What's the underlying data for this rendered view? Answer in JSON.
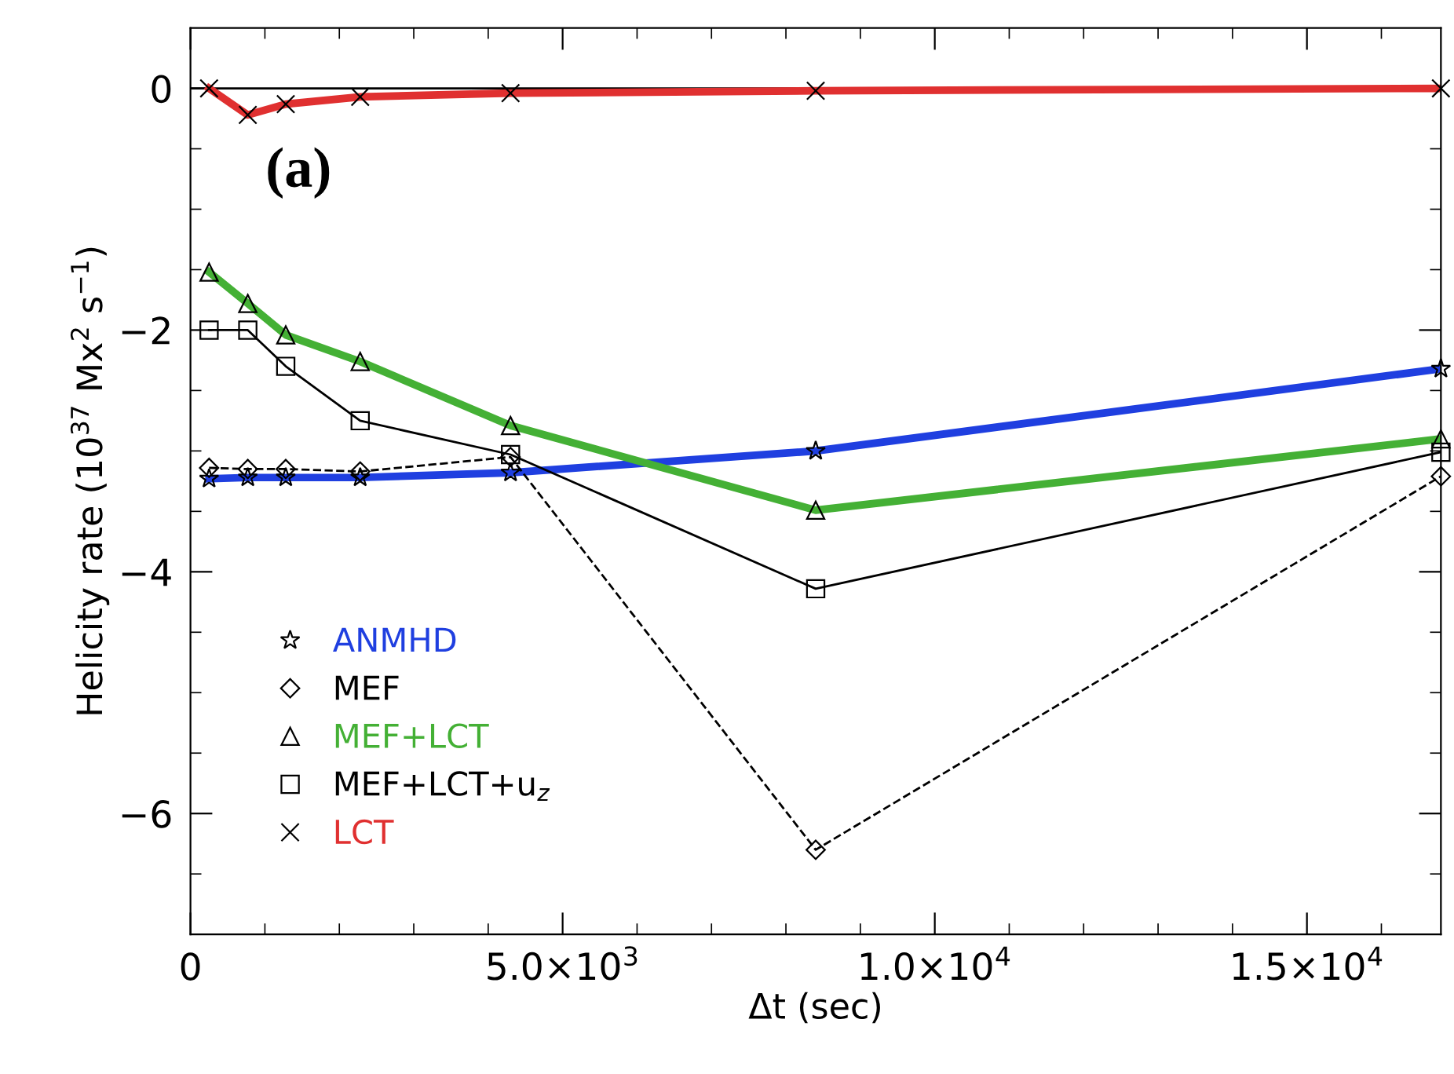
{
  "chart_data": {
    "type": "line",
    "xlabel": "Δt (sec)",
    "ylabel": "Helicity rate (10$^{37}$ Mx$^{2}$ s$^{−1}$)",
    "x": [
      250,
      770,
      1280,
      2280,
      4300,
      8400,
      16800
    ],
    "series": [
      {
        "name": "ANMHD",
        "color": "#1f3fe0",
        "marker": "star",
        "line_style": "solid",
        "values": [
          -3.23,
          -3.22,
          -3.22,
          -3.22,
          -3.18,
          -3.0,
          -2.32
        ]
      },
      {
        "name": "MEF",
        "color": "#000000",
        "marker": "diamond",
        "line_style": "dashed",
        "values": [
          -3.14,
          -3.15,
          -3.15,
          -3.17,
          -3.05,
          -6.3,
          -3.21
        ]
      },
      {
        "name": "MEF+LCT",
        "color": "#44b035",
        "marker": "triangle",
        "line_style": "solid",
        "values": [
          -1.52,
          -1.78,
          -2.04,
          -2.26,
          -2.79,
          -3.49,
          -2.9
        ]
      },
      {
        "name": "MEF+LCT+u$_{z}$",
        "color": "#000000",
        "marker": "square",
        "line_style": "solid",
        "values": [
          -2.0,
          -2.0,
          -2.3,
          -2.75,
          -3.03,
          -4.14,
          -3.01
        ]
      },
      {
        "name": "LCT",
        "color": "#e03030",
        "marker": "cross",
        "line_style": "solid",
        "values": [
          0,
          -0.22,
          -0.13,
          -0.07,
          -0.04,
          -0.02,
          0
        ]
      }
    ],
    "xlim": [
      0,
      16800
    ],
    "ylim": [
      -7,
      0.5
    ],
    "xticks": [
      0,
      {
        "value": 5000,
        "label": "5.0×10$^{3}$"
      },
      {
        "value": 10000,
        "label": "1.0×10$^{4}$"
      },
      {
        "value": 15000,
        "label": "1.5×10$^{4}$"
      },
      {
        "value": 1000,
        "label": null
      },
      {
        "value": 2000,
        "label": null
      },
      {
        "value": 3000,
        "label": null
      },
      {
        "value": 4000,
        "label": null
      },
      {
        "value": 6000,
        "label": null
      },
      {
        "value": 7000,
        "label": null
      },
      {
        "value": 8000,
        "label": null
      },
      {
        "value": 9000,
        "label": null
      },
      {
        "value": 11000,
        "label": null
      },
      {
        "value": 12000,
        "label": null
      },
      {
        "value": 13000,
        "label": null
      },
      {
        "value": 14000,
        "label": null
      },
      {
        "value": 16000,
        "label": null
      }
    ],
    "yticks": [
      0,
      {
        "value": -2,
        "label": "−2"
      },
      {
        "value": -4,
        "label": "−4"
      },
      {
        "value": -6,
        "label": "−6"
      },
      {
        "value": -0.5,
        "label": null
      },
      {
        "value": -1,
        "label": null
      },
      {
        "value": -1.5,
        "label": null
      },
      {
        "value": -2.5,
        "label": null
      },
      {
        "value": -3,
        "label": null
      },
      {
        "value": -3.5,
        "label": null
      },
      {
        "value": -4.5,
        "label": null
      },
      {
        "value": -5,
        "label": null
      },
      {
        "value": -5.5,
        "label": null
      },
      {
        "value": -6.5,
        "label": null
      }
    ],
    "ref_lines": [
      {
        "axis": "y",
        "value": 0,
        "color": "#000000"
      }
    ],
    "annotations": [
      "(a)"
    ],
    "grid": false,
    "legend": "bottom left"
  }
}
